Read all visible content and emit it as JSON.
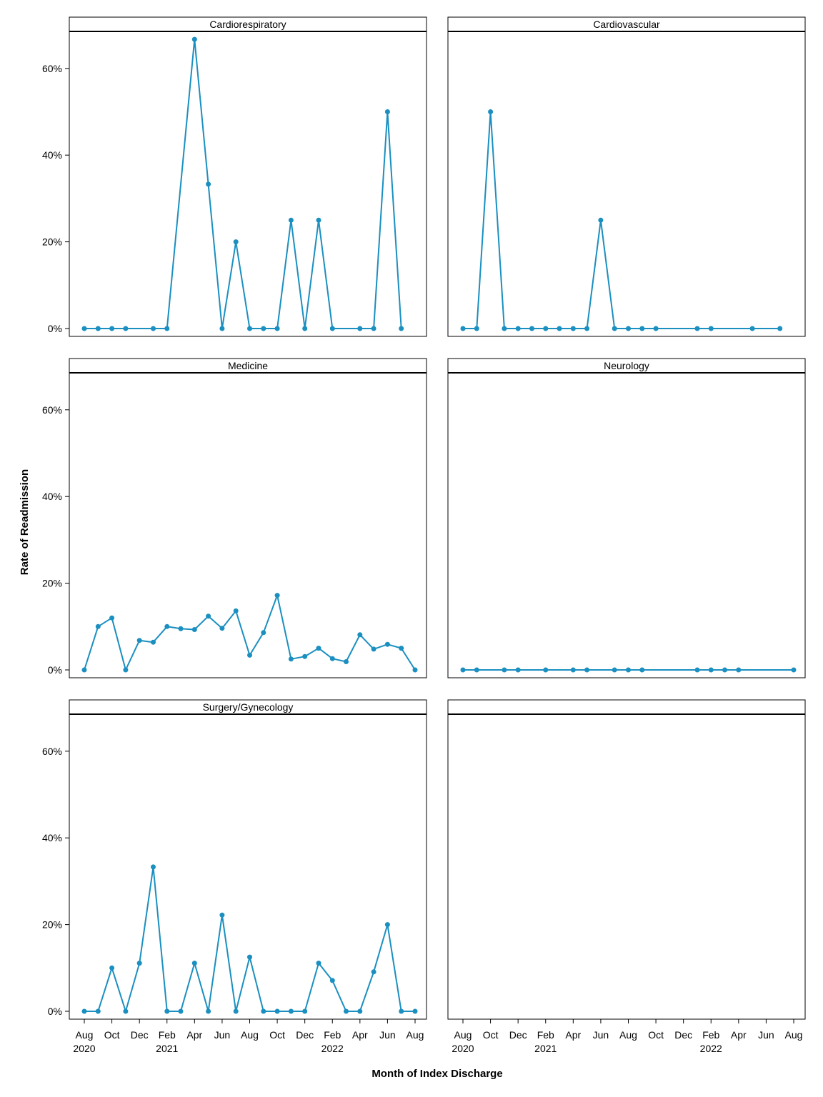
{
  "chart_data": {
    "type": "line",
    "xlabel": "Month of Index Discharge",
    "ylabel": "Rate of Readmission",
    "ylim": [
      0,
      0.7
    ],
    "y_ticks": [
      0,
      0.2,
      0.4,
      0.6
    ],
    "y_tick_labels": [
      "0%",
      "20%",
      "40%",
      "60%"
    ],
    "x_range": [
      "2020-08",
      "2022-08"
    ],
    "x_ticks": [
      {
        "month": "2020-08",
        "label": "Aug",
        "year": "2020"
      },
      {
        "month": "2020-10",
        "label": "Oct",
        "year": ""
      },
      {
        "month": "2020-12",
        "label": "Dec",
        "year": ""
      },
      {
        "month": "2021-02",
        "label": "Feb",
        "year": "2021"
      },
      {
        "month": "2021-04",
        "label": "Apr",
        "year": ""
      },
      {
        "month": "2021-06",
        "label": "Jun",
        "year": ""
      },
      {
        "month": "2021-08",
        "label": "Aug",
        "year": ""
      },
      {
        "month": "2021-10",
        "label": "Oct",
        "year": ""
      },
      {
        "month": "2021-12",
        "label": "Dec",
        "year": ""
      },
      {
        "month": "2022-02",
        "label": "Feb",
        "year": "2022"
      },
      {
        "month": "2022-04",
        "label": "Apr",
        "year": ""
      },
      {
        "month": "2022-06",
        "label": "Jun",
        "year": ""
      },
      {
        "month": "2022-08",
        "label": "Aug",
        "year": ""
      }
    ],
    "line_color": "#1a8fc0",
    "panels": [
      {
        "title": "Cardiorespiratory",
        "x": [
          "2020-08",
          "2020-09",
          "2020-10",
          "2020-11",
          "2021-01",
          "2021-02",
          "2021-04",
          "2021-05",
          "2021-06",
          "2021-07",
          "2021-08",
          "2021-09",
          "2021-10",
          "2021-11",
          "2021-12",
          "2022-01",
          "2022-02",
          "2022-04",
          "2022-05",
          "2022-06",
          "2022-07"
        ],
        "y": [
          0,
          0,
          0,
          0,
          0,
          0,
          0.667,
          0.333,
          0,
          0.2,
          0,
          0,
          0,
          0.25,
          0,
          0.25,
          0,
          0,
          0,
          0.5,
          0
        ]
      },
      {
        "title": "Cardiovascular",
        "x": [
          "2020-08",
          "2020-09",
          "2020-10",
          "2020-11",
          "2020-12",
          "2021-01",
          "2021-02",
          "2021-03",
          "2021-04",
          "2021-05",
          "2021-06",
          "2021-07",
          "2021-08",
          "2021-09",
          "2021-10",
          "2022-01",
          "2022-02",
          "2022-05",
          "2022-07"
        ],
        "y": [
          0,
          0,
          0.5,
          0,
          0,
          0,
          0,
          0,
          0,
          0,
          0.25,
          0,
          0,
          0,
          0,
          0,
          0,
          0,
          0
        ]
      },
      {
        "title": "Medicine",
        "x": [
          "2020-08",
          "2020-09",
          "2020-10",
          "2020-11",
          "2020-12",
          "2021-01",
          "2021-02",
          "2021-03",
          "2021-04",
          "2021-05",
          "2021-06",
          "2021-07",
          "2021-08",
          "2021-09",
          "2021-10",
          "2021-11",
          "2021-12",
          "2022-01",
          "2022-02",
          "2022-03",
          "2022-04",
          "2022-05",
          "2022-06",
          "2022-07",
          "2022-08"
        ],
        "y": [
          0,
          0.1,
          0.12,
          0,
          0.068,
          0.064,
          0.1,
          0.095,
          0.093,
          0.124,
          0.096,
          0.136,
          0.034,
          0.086,
          0.172,
          0.025,
          0.031,
          0.05,
          0.026,
          0.019,
          0.081,
          0.048,
          0.059,
          0.05,
          0
        ]
      },
      {
        "title": "Neurology",
        "x": [
          "2020-08",
          "2020-09",
          "2020-11",
          "2020-12",
          "2021-02",
          "2021-04",
          "2021-05",
          "2021-07",
          "2021-08",
          "2021-09",
          "2022-01",
          "2022-02",
          "2022-03",
          "2022-04",
          "2022-08"
        ],
        "y": [
          0,
          0,
          0,
          0,
          0,
          0,
          0,
          0,
          0,
          0,
          0,
          0,
          0,
          0,
          0
        ]
      },
      {
        "title": "Surgery/Gynecology",
        "x": [
          "2020-08",
          "2020-09",
          "2020-10",
          "2020-11",
          "2020-12",
          "2021-01",
          "2021-02",
          "2021-03",
          "2021-04",
          "2021-05",
          "2021-06",
          "2021-07",
          "2021-08",
          "2021-09",
          "2021-10",
          "2021-11",
          "2021-12",
          "2022-01",
          "2022-02",
          "2022-03",
          "2022-04",
          "2022-05",
          "2022-06",
          "2022-07",
          "2022-08"
        ],
        "y": [
          0,
          0,
          0.1,
          0,
          0.111,
          0.333,
          0,
          0,
          0.111,
          0,
          0.222,
          0,
          0.125,
          0,
          0,
          0,
          0,
          0.111,
          0.071,
          0,
          0,
          0.091,
          0.2,
          0,
          0
        ]
      },
      {
        "title": "",
        "x": [],
        "y": []
      }
    ]
  }
}
